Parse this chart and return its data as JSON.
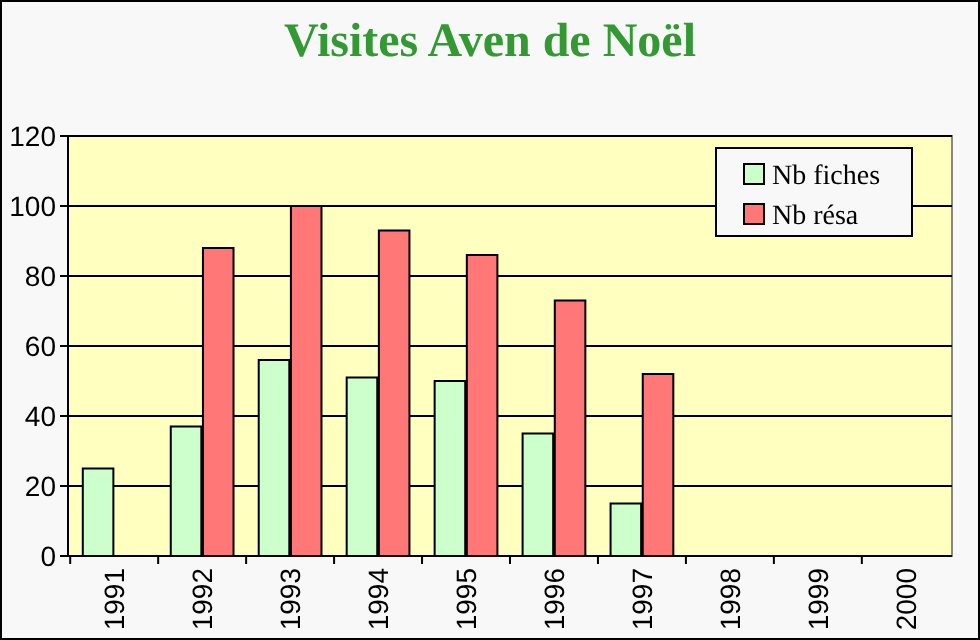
{
  "chart_data": {
    "type": "bar",
    "title": "Visites Aven de Noël",
    "categories": [
      "1991",
      "1992",
      "1993",
      "1994",
      "1995",
      "1996",
      "1997",
      "1998",
      "1999",
      "2000"
    ],
    "series": [
      {
        "name": "Nb fiches",
        "color": "#ccffcc",
        "values": [
          25,
          37,
          56,
          51,
          50,
          35,
          15,
          0,
          0,
          0
        ]
      },
      {
        "name": "Nb résa",
        "color": "#ff7777",
        "values": [
          0,
          88,
          100,
          93,
          86,
          73,
          52,
          0,
          0,
          0
        ]
      }
    ],
    "ylim": [
      0,
      120
    ],
    "yticks": [
      0,
      20,
      40,
      60,
      80,
      100,
      120
    ],
    "grid": "y",
    "legend": "top right"
  }
}
